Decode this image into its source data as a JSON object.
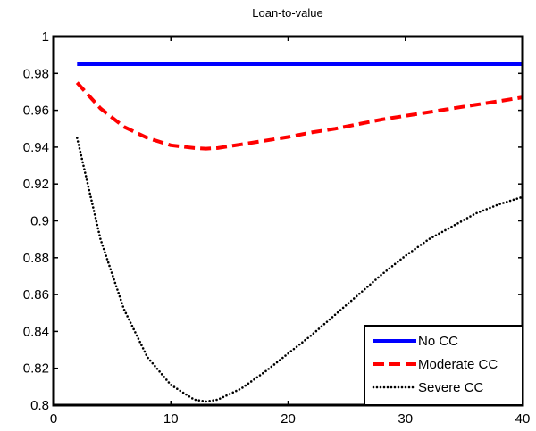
{
  "chart_data": {
    "type": "line",
    "title": "Loan-to-value",
    "xlabel": "",
    "ylabel": "",
    "xlim": [
      0,
      40
    ],
    "ylim": [
      0.8,
      1.0
    ],
    "xticks": [
      0,
      10,
      20,
      30,
      40
    ],
    "xtick_labels": [
      "0",
      "10",
      "20",
      "30",
      "40"
    ],
    "yticks": [
      0.8,
      0.82,
      0.84,
      0.86,
      0.88,
      0.9,
      0.92,
      0.94,
      0.96,
      0.98,
      1.0
    ],
    "ytick_labels": [
      "0.8",
      "0.82",
      "0.84",
      "0.86",
      "0.88",
      "0.9",
      "0.92",
      "0.94",
      "0.96",
      "0.98",
      "1"
    ],
    "grid": false,
    "legend_position": "bottom-right",
    "x": [
      2,
      4,
      6,
      8,
      10,
      12,
      13,
      14,
      16,
      18,
      20,
      22,
      24,
      26,
      28,
      30,
      32,
      34,
      36,
      38,
      40
    ],
    "series": [
      {
        "name": "No CC",
        "color": "#0000ff",
        "style": "solid",
        "values": [
          0.985,
          0.985,
          0.985,
          0.985,
          0.985,
          0.985,
          0.985,
          0.985,
          0.985,
          0.985,
          0.985,
          0.985,
          0.985,
          0.985,
          0.985,
          0.985,
          0.985,
          0.985,
          0.985,
          0.985,
          0.985
        ]
      },
      {
        "name": "Moderate CC",
        "color": "#ff0000",
        "style": "dashed",
        "values": [
          0.975,
          0.961,
          0.951,
          0.945,
          0.941,
          0.9395,
          0.9392,
          0.9395,
          0.9415,
          0.9435,
          0.9455,
          0.948,
          0.95,
          0.9525,
          0.955,
          0.957,
          0.959,
          0.961,
          0.963,
          0.965,
          0.967
        ]
      },
      {
        "name": "Severe CC",
        "color": "#000000",
        "style": "dotted",
        "values": [
          0.945,
          0.89,
          0.852,
          0.826,
          0.811,
          0.803,
          0.802,
          0.803,
          0.809,
          0.818,
          0.828,
          0.838,
          0.849,
          0.86,
          0.871,
          0.881,
          0.89,
          0.897,
          0.904,
          0.909,
          0.913
        ]
      }
    ]
  }
}
